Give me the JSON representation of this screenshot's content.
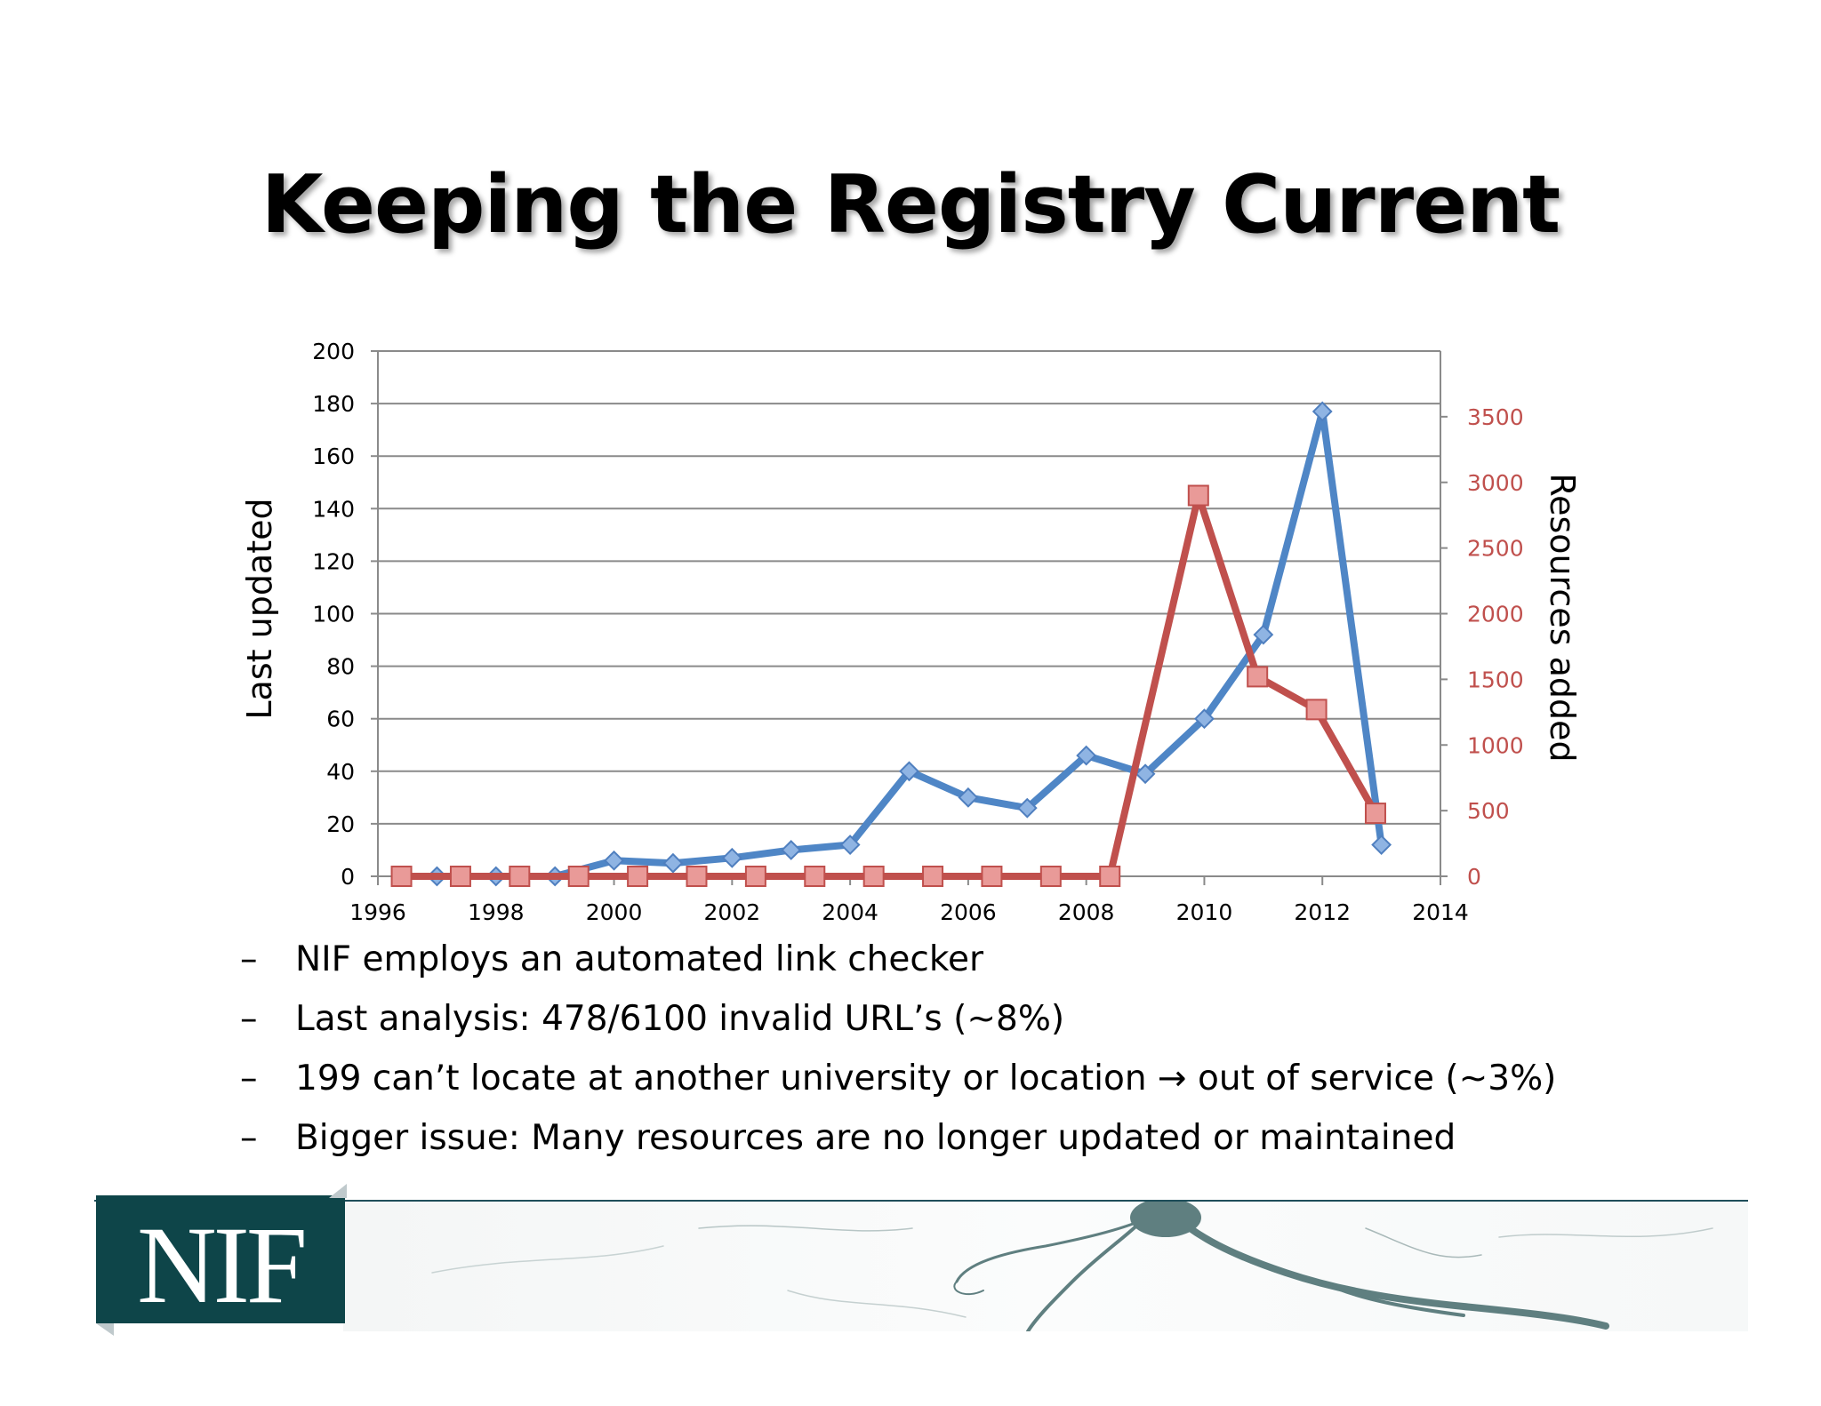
{
  "slide": {
    "title": "Keeping the Registry Current",
    "bullets": [
      "NIF employs an automated link checker",
      "Last analysis:  478/6100 invalid URL’s (~8%)",
      "199 can’t locate at another university or location → out of service (~3%)",
      "Bigger issue:  Many resources are no longer updated or maintained"
    ],
    "bullet_marker": "–",
    "logo_text": "NIF"
  },
  "colors": {
    "series_blue": "#4f86c6",
    "series_red": "#c0504d",
    "logo_bg": "#0e4549"
  },
  "chart_data": {
    "type": "line",
    "xlabel": "",
    "ylabel_left": "Last updated",
    "ylabel_right": "Resources added",
    "xlim": [
      1996,
      2014
    ],
    "xticks": [
      1996,
      1998,
      2000,
      2002,
      2004,
      2006,
      2008,
      2010,
      2012,
      2014
    ],
    "ylim_left": [
      0,
      200
    ],
    "yticks_left": [
      0,
      20,
      40,
      60,
      80,
      100,
      120,
      140,
      160,
      180,
      200
    ],
    "ylim_right": [
      0,
      4000
    ],
    "yticks_right": [
      0,
      500,
      1000,
      1500,
      2000,
      2500,
      3000,
      3500
    ],
    "grid": true,
    "series": [
      {
        "axis": "left",
        "color": "#4f86c6",
        "marker": "diamond",
        "x": [
          1997,
          1998,
          1999,
          2000,
          2001,
          2002,
          2003,
          2004,
          2005,
          2006,
          2007,
          2008,
          2009,
          2010,
          2011,
          2012,
          2013
        ],
        "values": [
          0,
          0,
          0,
          6,
          5,
          7,
          10,
          12,
          40,
          30,
          26,
          46,
          39,
          60,
          92,
          177,
          12
        ]
      },
      {
        "axis": "right",
        "color": "#c0504d",
        "marker": "square",
        "x": [
          1996.4,
          1997.4,
          1998.4,
          1999.4,
          2000.4,
          2001.4,
          2002.4,
          2003.4,
          2004.4,
          2005.4,
          2006.4,
          2007.4,
          2008.4,
          2009.9,
          2010.9,
          2011.9,
          2012.9
        ],
        "values": [
          0,
          0,
          0,
          0,
          0,
          0,
          0,
          0,
          0,
          0,
          0,
          0,
          0,
          2900,
          1520,
          1270,
          480
        ]
      }
    ]
  }
}
